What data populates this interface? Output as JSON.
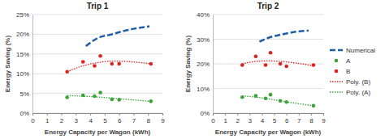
{
  "chart_data": [
    {
      "type": "scatter",
      "title": "Trip 1",
      "x_label": "Energy Capacity per Wagon (kWh)",
      "y_label": "Energy Saving (%)",
      "xlim": [
        0,
        9
      ],
      "xticks": [
        0,
        1,
        2,
        3,
        4,
        5,
        6,
        7,
        8,
        9
      ],
      "ylim": [
        0,
        25
      ],
      "yticks": [
        {
          "value": 0,
          "label": "0%"
        },
        {
          "value": 5,
          "label": "5%"
        },
        {
          "value": 10,
          "label": "10%"
        },
        {
          "value": 15,
          "label": "15%"
        },
        {
          "value": 20,
          "label": "20%"
        },
        {
          "value": 25,
          "label": "25%"
        }
      ],
      "grid": true,
      "series": [
        {
          "name": "Numerical",
          "type": "line",
          "color": "#1f5fa8",
          "line_style": "dashed",
          "x": [
            3.7,
            4.5,
            5.5,
            6.5,
            8.1
          ],
          "values": [
            17,
            19,
            20,
            21,
            22
          ]
        },
        {
          "name": "A",
          "type": "scatter",
          "color": "#3aa33a",
          "marker": "circle",
          "x": [
            2.4,
            3.5,
            4.3,
            4.7,
            5.5,
            6.0,
            8.2
          ],
          "values": [
            4,
            4.5,
            4.3,
            5.2,
            3.5,
            3.4,
            3
          ]
        },
        {
          "name": "B",
          "type": "scatter",
          "color": "#e02020",
          "marker": "circle",
          "x": [
            2.4,
            3.5,
            4.3,
            4.7,
            5.5,
            6.0,
            8.2
          ],
          "values": [
            10.5,
            13,
            12,
            14.5,
            12.5,
            12.5,
            12.5
          ]
        },
        {
          "name": "Poly. (B)",
          "type": "line",
          "color": "#e02020",
          "line_style": "dotted",
          "x": [
            2.4,
            3.5,
            4.5,
            5.5,
            6.5,
            7.5,
            8.2
          ],
          "values": [
            10.5,
            12,
            12.8,
            13.2,
            13.1,
            12.8,
            12.5
          ]
        },
        {
          "name": "Poly. (A)",
          "type": "line",
          "color": "#3aa33a",
          "line_style": "dotted",
          "x": [
            2.4,
            3.5,
            4.5,
            5.5,
            6.5,
            7.5,
            8.2
          ],
          "values": [
            4.5,
            4.3,
            4.1,
            3.8,
            3.5,
            3.2,
            3
          ]
        }
      ]
    },
    {
      "type": "scatter",
      "title": "Trip 2",
      "x_label": "Energy Capacity per Wagon (kWh)",
      "y_label": "Energy Saving (%)",
      "xlim": [
        0,
        9
      ],
      "xticks": [
        0,
        1,
        2,
        3,
        4,
        5,
        6,
        7,
        8,
        9
      ],
      "ylim": [
        0,
        40
      ],
      "yticks": [
        {
          "value": 0,
          "label": "0%"
        },
        {
          "value": 10,
          "label": "10%"
        },
        {
          "value": 20,
          "label": "20%"
        },
        {
          "value": 30,
          "label": "30%"
        },
        {
          "value": 40,
          "label": "40%"
        }
      ],
      "grid": true,
      "legend": "right",
      "series": [
        {
          "name": "Numerical",
          "type": "line",
          "color": "#1f5fa8",
          "line_style": "dashed",
          "x": [
            3.8,
            4.5,
            5.5,
            6.5,
            7.8
          ],
          "values": [
            29,
            30.5,
            31.8,
            32.8,
            33.5
          ]
        },
        {
          "name": "A",
          "type": "scatter",
          "color": "#3aa33a",
          "marker": "circle",
          "x": [
            2.4,
            3.5,
            4.3,
            4.7,
            5.5,
            6.0,
            8.2
          ],
          "values": [
            6.5,
            7,
            6,
            7.5,
            5,
            4.5,
            3
          ]
        },
        {
          "name": "B",
          "type": "scatter",
          "color": "#e02020",
          "marker": "circle",
          "x": [
            2.4,
            3.5,
            4.3,
            4.7,
            5.5,
            6.0,
            8.2
          ],
          "values": [
            19.5,
            23,
            19.5,
            24.5,
            20,
            19,
            19.5
          ]
        },
        {
          "name": "Poly. (B)",
          "type": "line",
          "color": "#e02020",
          "line_style": "dotted",
          "x": [
            2.4,
            3.5,
            4.5,
            5.5,
            6.5,
            7.5,
            8.2
          ],
          "values": [
            20,
            21,
            21.2,
            21,
            20.5,
            19.8,
            19.3
          ]
        },
        {
          "name": "Poly. (A)",
          "type": "line",
          "color": "#3aa33a",
          "line_style": "dotted",
          "x": [
            2.4,
            3.5,
            4.5,
            5.5,
            6.5,
            7.5,
            8.2
          ],
          "values": [
            7,
            6.5,
            5.8,
            5,
            4.2,
            3.5,
            3
          ]
        }
      ]
    }
  ]
}
